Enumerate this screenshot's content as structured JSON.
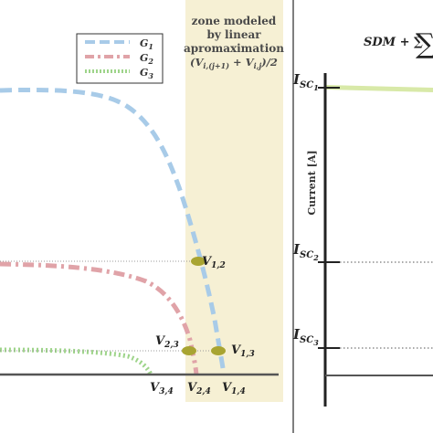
{
  "zone": {
    "title_line1": "zone modeled",
    "title_line2": "by linear",
    "title_line3": "apromaximation",
    "formula": "(Vᵢ,₍ⱼ₊₁₎ + Vᵢ,ⱼ)/2",
    "fill": "#f6f0d4"
  },
  "legend": {
    "items": [
      {
        "label": "G₁",
        "color": "#a8cbe8",
        "dash": "long"
      },
      {
        "label": "G₂",
        "color": "#e0a3a8",
        "dash": "dashdot"
      },
      {
        "label": "G₃",
        "color": "#9ed48a",
        "dash": "dots"
      }
    ]
  },
  "points": {
    "v12": "V₁,₂",
    "v23": "V₂,₃",
    "v13": "V₁,₃",
    "v34": "V₃,₄",
    "v24": "V₂,₄",
    "v14": "V₁,₄",
    "marker_color": "#a8a431"
  },
  "right_panel": {
    "formula": "SDM + ∑",
    "isc1": "Iₛ꜀₁",
    "isc1_text": "I",
    "isc1_sub": "SC1",
    "isc2_text": "I",
    "isc2_sub": "SC2",
    "isc3_text": "I",
    "isc3_sub": "SC3",
    "y_axis_label": "Current [A]",
    "band_color": "#d8e9a8"
  }
}
